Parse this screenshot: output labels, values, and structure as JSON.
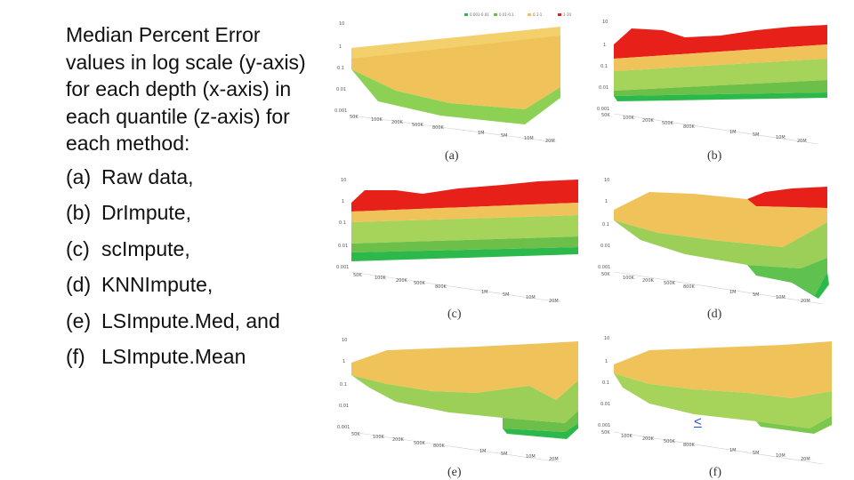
{
  "description_lines": [
    "Median Percent Error",
    "values in log scale (y-axis)",
    "for each depth (x-axis) in",
    "each quantile (z-axis) for",
    "each method:"
  ],
  "methods": [
    {
      "marker": "(a)",
      "label": "Raw data,"
    },
    {
      "marker": "(b)",
      "label": "DrImpute,"
    },
    {
      "marker": "(c)",
      "label": "scImpute,"
    },
    {
      "marker": "(d)",
      "label": "KNNImpute,"
    },
    {
      "marker": "(e)",
      "label": "LSImpute.Med, and"
    },
    {
      "marker": "(f)",
      "label": "LSImpute.Mean"
    }
  ],
  "panels": [
    {
      "caption": "(a)",
      "y_ticks": [
        "10",
        "1",
        "0.1",
        "0.01",
        "0.001"
      ],
      "x_ticks": [
        "50K",
        "100K",
        "200K",
        "500K",
        "800K",
        "1M",
        "5M",
        "10M",
        "20M"
      ],
      "legend": [
        "0.001-0.01",
        "0.01-0.1",
        "0.1-1",
        "1-10"
      ]
    },
    {
      "caption": "(b)",
      "y_ticks": [
        "10",
        "1",
        "0.1",
        "0.01",
        "0.001"
      ],
      "x_ticks": [
        "50K",
        "100K",
        "200K",
        "500K",
        "800K",
        "1M",
        "5M",
        "10M",
        "20M"
      ]
    },
    {
      "caption": "(c)",
      "y_ticks": [
        "10",
        "1",
        "0.1",
        "0.01",
        "0.001"
      ],
      "x_ticks": [
        "50K",
        "100K",
        "200K",
        "500K",
        "800K",
        "1M",
        "5M",
        "10M",
        "20M"
      ]
    },
    {
      "caption": "(d)",
      "y_ticks": [
        "10",
        "1",
        "0.1",
        "0.01",
        "0.001"
      ],
      "x_ticks": [
        "50K",
        "100K",
        "200K",
        "500K",
        "800K",
        "1M",
        "5M",
        "10M",
        "20M"
      ]
    },
    {
      "caption": "(e)",
      "y_ticks": [
        "10",
        "1",
        "0.1",
        "0.01",
        "0.001"
      ],
      "x_ticks": [
        "50K",
        "100K",
        "200K",
        "500K",
        "800K",
        "1M",
        "5M",
        "10M",
        "20M"
      ]
    },
    {
      "caption": "(f)",
      "y_ticks": [
        "10",
        "1",
        "0.1",
        "0.01",
        "0.001"
      ],
      "x_ticks": [
        "50K",
        "100K",
        "200K",
        "500K",
        "800K",
        "1M",
        "5M",
        "10M",
        "20M"
      ]
    }
  ],
  "colors": {
    "red": "#e8201a",
    "orange": "#f0c35a",
    "yellow_green": "#bfd35a",
    "green": "#6cc04a",
    "dark_green": "#2db84b"
  },
  "nav": {
    "label": "<"
  }
}
